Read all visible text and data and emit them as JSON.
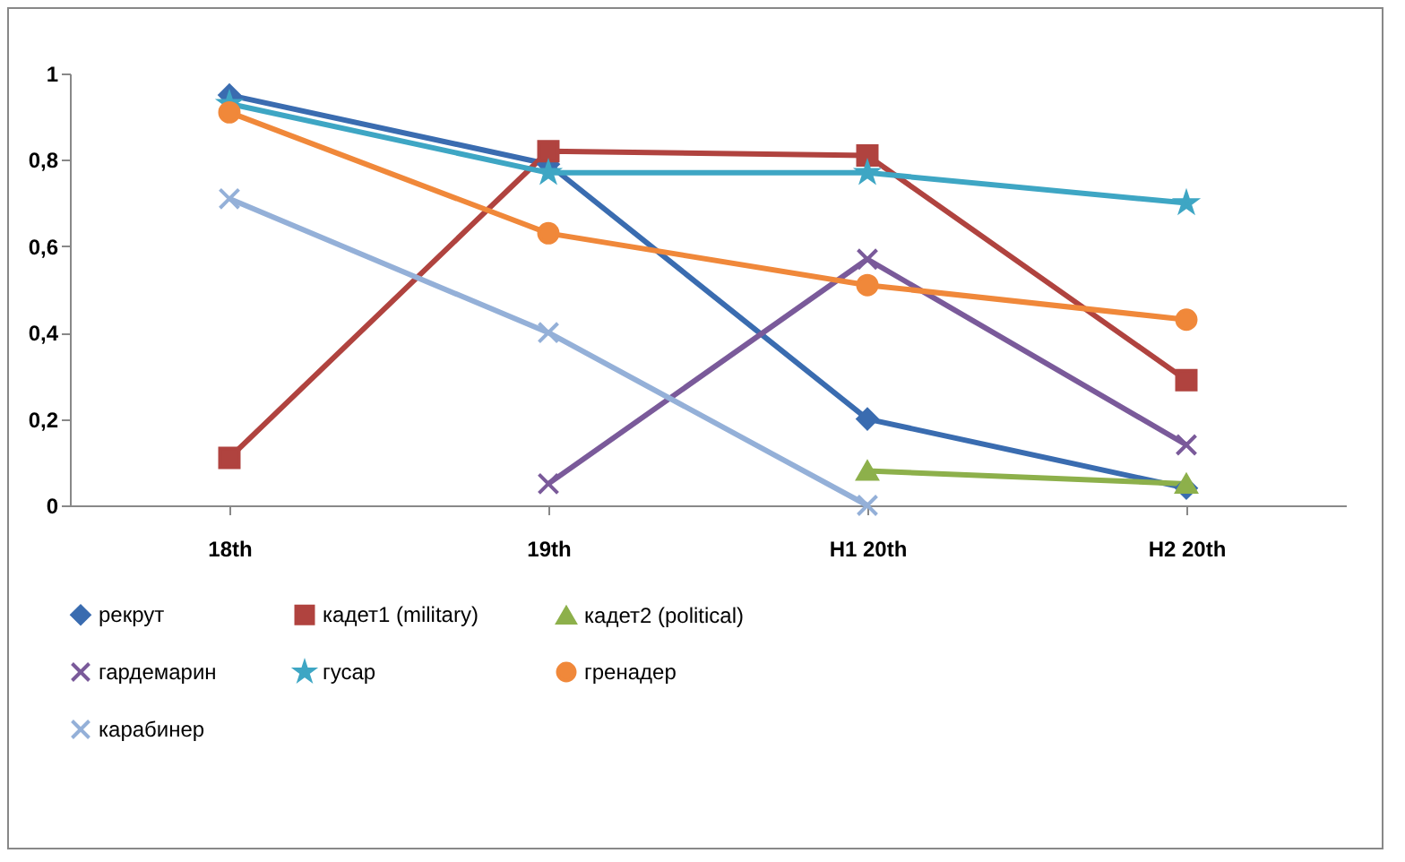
{
  "chart_data": {
    "type": "line",
    "categories": [
      "18th",
      "19th",
      "H1 20th",
      "H2 20th"
    ],
    "ylim": [
      0,
      1
    ],
    "yticks": [
      0,
      {
        "value": 0.2,
        "label": "0,2"
      },
      {
        "value": 0.4,
        "label": "0,4"
      },
      {
        "value": 0.6,
        "label": "0,6"
      },
      {
        "value": 0.8,
        "label": "0,8"
      },
      1
    ],
    "grid": false,
    "legend": "bottom",
    "series": [
      {
        "name": "рекрут",
        "color": "#3a6cb0",
        "marker": "diamond",
        "values": [
          0.95,
          0.79,
          0.2,
          0.04
        ]
      },
      {
        "name": "кадет1 (military)",
        "color": "#b0433f",
        "marker": "square",
        "values": [
          0.11,
          0.82,
          0.81,
          0.29
        ]
      },
      {
        "name": "кадет2 (political)",
        "color": "#8db04b",
        "marker": "triangle",
        "values": [
          null,
          null,
          0.08,
          0.05
        ]
      },
      {
        "name": "гардемарин",
        "color": "#7a5a9a",
        "marker": "cross",
        "values": [
          null,
          0.05,
          0.57,
          0.14
        ]
      },
      {
        "name": "гусар",
        "color": "#3ea6c4",
        "marker": "star",
        "values": [
          0.93,
          0.77,
          0.77,
          0.7
        ]
      },
      {
        "name": "гренадер",
        "color": "#f0883a",
        "marker": "circle",
        "values": [
          0.91,
          0.63,
          0.51,
          0.43
        ]
      },
      {
        "name": "карабинер",
        "color": "#94b0d8",
        "marker": "cross",
        "values": [
          0.71,
          0.4,
          0,
          null
        ]
      }
    ]
  }
}
